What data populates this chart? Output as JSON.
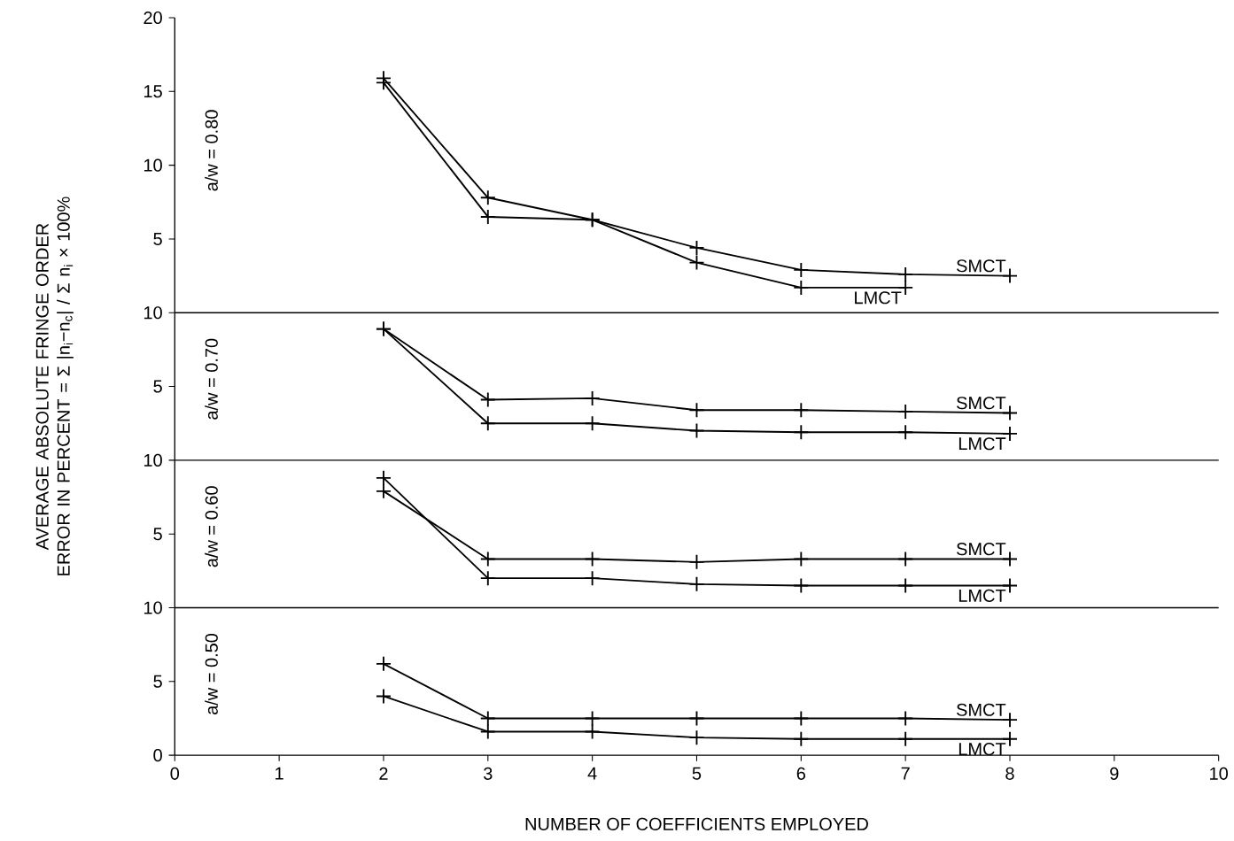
{
  "chart_data": [
    {
      "type": "line",
      "title": "a/w = 0.80",
      "ylabel": "AVERAGE ABSOLUTE FRINGE ORDER ERROR IN PERCENT = Σ |n$_{i}$−n$_{c}$| / Σ n$_{i}$ × 100%",
      "x": [
        2,
        3,
        4,
        5,
        6,
        7,
        8
      ],
      "xlim": [
        0,
        10
      ],
      "ylim": [
        0,
        20
      ],
      "yticks": [
        5,
        10,
        15,
        20
      ],
      "tick_labels": "y",
      "marker": "cross",
      "line_style": "solid",
      "series": [
        {
          "name": "SMCT",
          "color": "#000000",
          "values": [
            15.9,
            7.8,
            6.3,
            4.4,
            2.9,
            2.6,
            2.5
          ]
        },
        {
          "name": "LMCT",
          "color": "#000000",
          "values": [
            15.6,
            6.5,
            6.3,
            3.4,
            1.7,
            1.7,
            null
          ]
        }
      ]
    },
    {
      "type": "line",
      "title": "a/w = 0.70",
      "x": [
        2,
        3,
        4,
        5,
        6,
        7,
        8
      ],
      "xlim": [
        0,
        10
      ],
      "ylim": [
        0,
        10
      ],
      "yticks": [
        5,
        10
      ],
      "tick_labels": "y",
      "marker": "cross",
      "line_style": "solid",
      "series": [
        {
          "name": "SMCT",
          "color": "#000000",
          "values": [
            8.9,
            4.1,
            4.2,
            3.4,
            3.4,
            3.3,
            3.2
          ]
        },
        {
          "name": "LMCT",
          "color": "#000000",
          "values": [
            8.9,
            2.5,
            2.5,
            2.0,
            1.9,
            1.9,
            1.8
          ]
        }
      ]
    },
    {
      "type": "line",
      "title": "a/w = 0.60",
      "x": [
        2,
        3,
        4,
        5,
        6,
        7,
        8
      ],
      "xlim": [
        0,
        10
      ],
      "ylim": [
        0,
        10
      ],
      "yticks": [
        5,
        10
      ],
      "tick_labels": "y",
      "marker": "cross",
      "line_style": "solid",
      "series": [
        {
          "name": "SMCT",
          "color": "#000000",
          "values": [
            7.9,
            3.3,
            3.3,
            3.1,
            3.3,
            3.3,
            3.3
          ]
        },
        {
          "name": "LMCT",
          "color": "#000000",
          "values": [
            8.8,
            2.0,
            2.0,
            1.6,
            1.5,
            1.5,
            1.5
          ]
        }
      ]
    },
    {
      "type": "line",
      "title": "a/w = 0.50",
      "xlabel": "NUMBER OF COEFFICIENTS EMPLOYED",
      "x": [
        2,
        3,
        4,
        5,
        6,
        7,
        8
      ],
      "xlim": [
        0,
        10
      ],
      "xticks": [
        0,
        1,
        2,
        3,
        4,
        5,
        6,
        7,
        8,
        9,
        10
      ],
      "ylim": [
        0,
        10
      ],
      "yticks": [
        0,
        5,
        10
      ],
      "marker": "cross",
      "line_style": "solid",
      "series": [
        {
          "name": "SMCT",
          "color": "#000000",
          "values": [
            6.2,
            2.5,
            2.5,
            2.5,
            2.5,
            2.5,
            2.4
          ]
        },
        {
          "name": "LMCT",
          "color": "#000000",
          "values": [
            4.0,
            1.6,
            1.6,
            1.2,
            1.1,
            1.1,
            1.1
          ]
        }
      ]
    }
  ]
}
